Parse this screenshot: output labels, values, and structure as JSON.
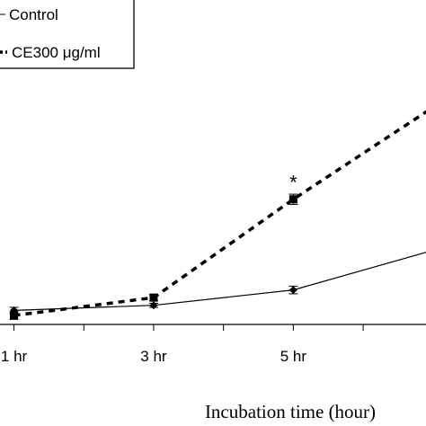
{
  "chart_data": {
    "type": "line",
    "xlabel": "Incubation time (hour)",
    "ylabel": "",
    "categories": [
      "1 hr",
      "3 hr",
      "5 hr",
      ""
    ],
    "x": [
      1,
      3,
      5,
      7
    ],
    "xlim": [
      0.8,
      6.9
    ],
    "ylim": [
      0,
      12
    ],
    "grid": false,
    "legend_position": "top-left",
    "series": [
      {
        "name": "Control",
        "style": "solid",
        "marker": "diamond",
        "color": "#000000",
        "values": [
          0.55,
          0.75,
          1.35,
          2.9
        ],
        "errors": [
          0.12,
          0.08,
          0.15,
          0.0
        ]
      },
      {
        "name": "CE300 μg/ml",
        "style": "dashed",
        "marker": "square",
        "color": "#000000",
        "values": [
          0.35,
          1.05,
          4.9,
          8.5
        ],
        "errors": [
          0.15,
          0.12,
          0.2,
          0.0
        ]
      }
    ],
    "annotations": [
      {
        "text": "*",
        "x": 5,
        "y": 5.65
      }
    ]
  }
}
